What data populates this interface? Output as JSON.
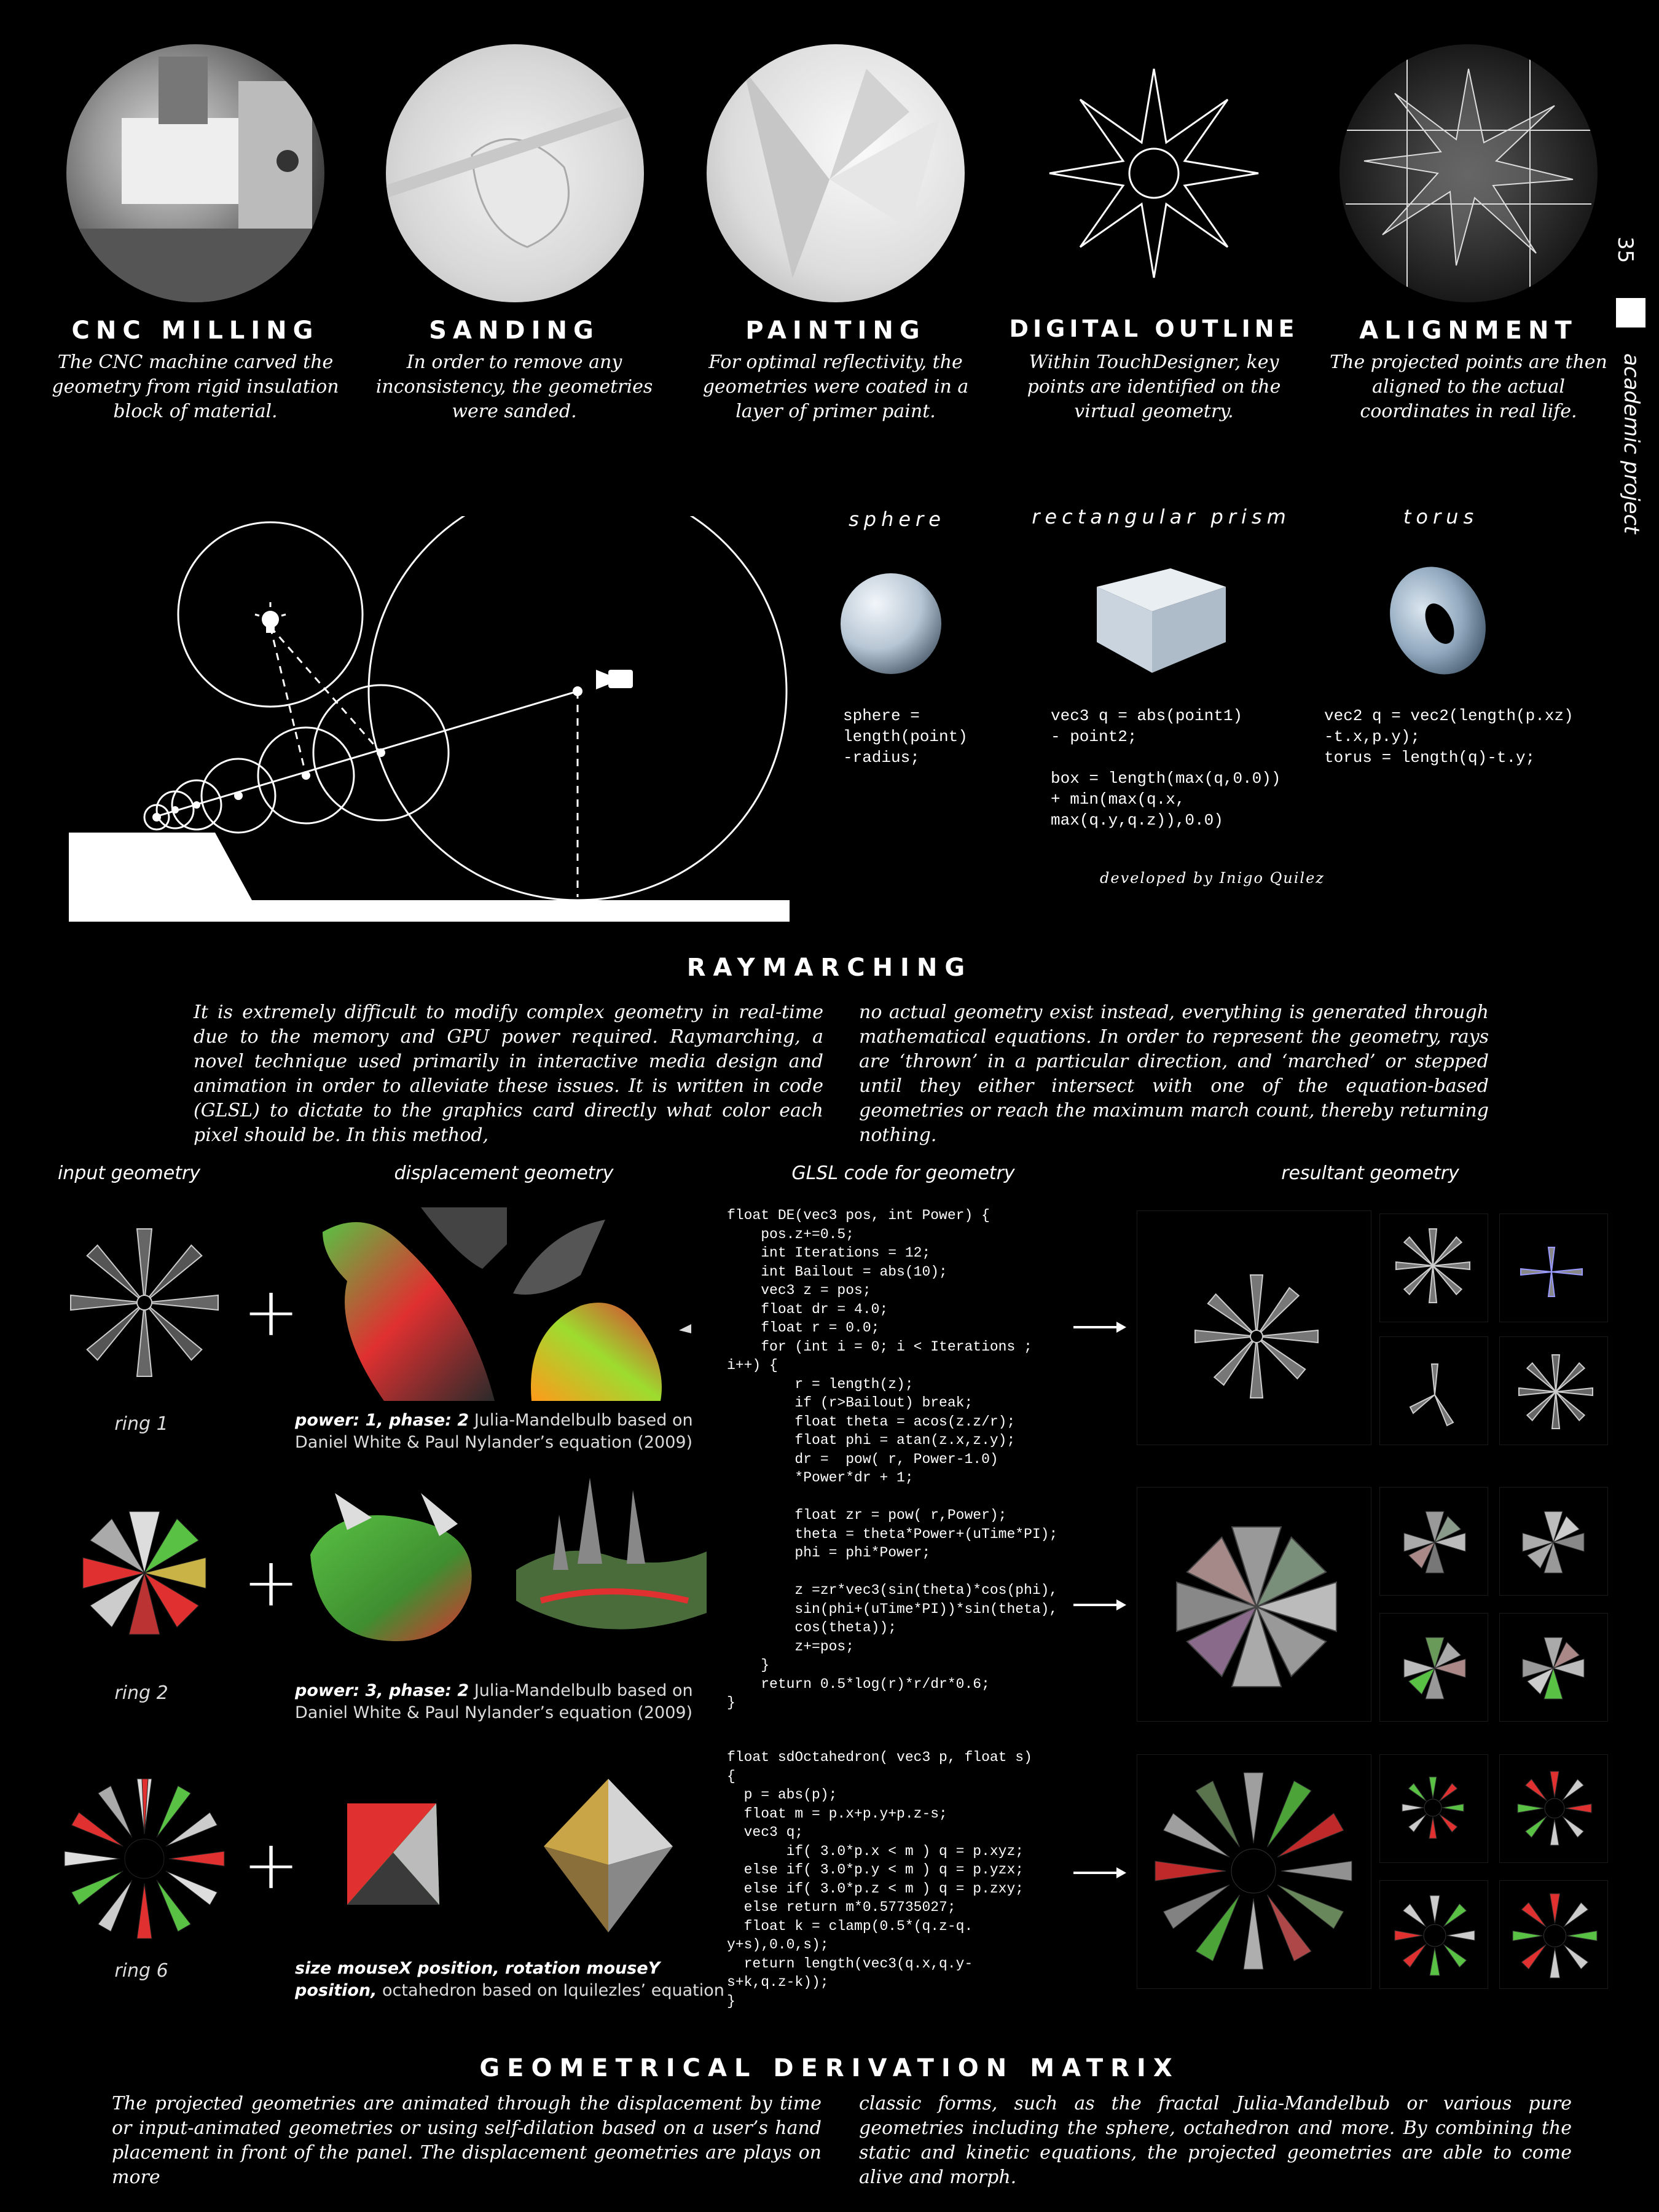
{
  "page_number": "35",
  "side_label": "academic project",
  "process_steps": [
    {
      "title": "CNC MILLING",
      "desc": "The CNC machine carved the geometry from rigid insulation block of material."
    },
    {
      "title": "SANDING",
      "desc": "In order to remove any inconsistency, the geometries were sanded."
    },
    {
      "title": "PAINTING",
      "desc": "For optimal reflectivity, the geometries were coated in a layer of primer paint."
    },
    {
      "title": "DIGITAL OUTLINE",
      "desc": "Within TouchDesigner, key points are identified on the virtual geometry."
    },
    {
      "title": "ALIGNMENT",
      "desc": "The projected points are then aligned to the actual coordinates in real life."
    }
  ],
  "primitives": [
    {
      "name": "sphere",
      "code": "sphere =\nlength(point)\n-radius;"
    },
    {
      "name": "rectangular prism",
      "code": "vec3 q = abs(point1)\n- point2;\n\nbox = length(max(q,0.0))\n+ min(max(q.x,\nmax(q.y,q.z)),0.0)"
    },
    {
      "name": "torus",
      "code": "vec2 q = vec2(length(p.xz)\n-t.x,p.y);\ntorus = length(q)-t.y;"
    }
  ],
  "credit": "developed by Inigo Quilez",
  "raymarching": {
    "title": "RAYMARCHING",
    "left": "It is extremely difficult to modify complex geometry in real-time due to the memory and GPU power required. Raymarching, a novel technique used primarily in interactive media design and animation in order to alleviate these issues. It is written in code (GLSL) to dictate to the graphics card directly what color each pixel should be. In this method,",
    "right": "no actual geometry exist instead, everything is generated through mathematical equations. In order to represent the geometry, rays are ‘thrown’ in a particular direction, and ‘marched’ or stepped until they either intersect with one of the equation-based geometries or reach the maximum march count, thereby returning nothing."
  },
  "matrix_headers": {
    "input": "input geometry",
    "displacement": "displacement geometry",
    "code": "GLSL code for geometry",
    "result": "resultant geometry"
  },
  "rings": [
    {
      "label": "ring 1",
      "caption_bold": "power: 1, phase: 2",
      "caption_rest": " Julia-Mandelbulb based on Daniel White & Paul Nylander’s equation (2009)"
    },
    {
      "label": "ring 2",
      "caption_bold": "power: 3, phase: 2",
      "caption_rest": " Julia-Mandelbulb based on Daniel White & Paul Nylander’s equation (2009)"
    },
    {
      "label": "ring 6",
      "caption_bold": "size mouseX position, rotation mouseY position,",
      "caption_rest": " octahedron based on Iquilezles’ equation"
    }
  ],
  "glsl_mandelbulb": "float DE(vec3 pos, int Power) {\n    pos.z+=0.5;\n    int Iterations = 12;\n    int Bailout = abs(10);\n    vec3 z = pos;\n    float dr = 4.0;\n    float r = 0.0;\n    for (int i = 0; i < Iterations ;\ni++) {\n        r = length(z);\n        if (r>Bailout) break;\n        float theta = acos(z.z/r);\n        float phi = atan(z.x,z.y);\n        dr =  pow( r, Power-1.0)\n        *Power*dr + 1;\n\n        float zr = pow( r,Power);\n        theta = theta*Power+(uTime*PI);\n        phi = phi*Power;\n\n        z =zr*vec3(sin(theta)*cos(phi),\n        sin(phi+(uTime*PI))*sin(theta),\n        cos(theta));\n        z+=pos;\n    }\n    return 0.5*log(r)*r/dr*0.6;\n}",
  "glsl_octahedron": "float sdOctahedron( vec3 p, float s)\n{\n  p = abs(p);\n  float m = p.x+p.y+p.z-s;\n  vec3 q;\n       if( 3.0*p.x < m ) q = p.xyz;\n  else if( 3.0*p.y < m ) q = p.yzx;\n  else if( 3.0*p.z < m ) q = p.zxy;\n  else return m*0.57735027;\n  float k = clamp(0.5*(q.z-q.\ny+s),0.0,s);\n  return length(vec3(q.x,q.y-\ns+k,q.z-k));\n}",
  "matrix": {
    "title": "GEOMETRICAL DERIVATION MATRIX",
    "left": "The projected geometries are animated through the displacement by time or input-animated geometries or using self-dilation based on a user’s hand placement in front of the panel. The displacement geometries are plays on more",
    "right": "classic forms, such as the fractal Julia-Mandelbub or various pure geometries including the sphere, octahedron and more. By combining the static and kinetic equations, the projected geometries are able to come alive and morph."
  },
  "colors": {
    "background": "#000000",
    "text": "#ffffff",
    "sphere": "#b7c6d4",
    "red": "#e03030",
    "green": "#59c143"
  }
}
